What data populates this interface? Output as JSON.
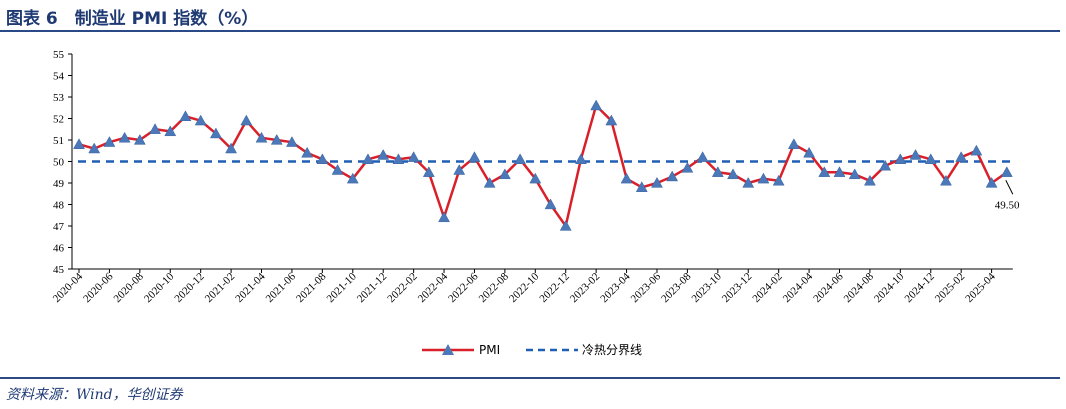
{
  "header": {
    "title": "图表 6　制造业 PMI 指数（%）"
  },
  "source": "资料来源：Wind，华创证券",
  "chart_data": {
    "type": "line",
    "title": "图表 6　制造业 PMI 指数（%）",
    "ylim": [
      45,
      55
    ],
    "yticks": [
      45,
      46,
      47,
      48,
      49,
      50,
      51,
      52,
      53,
      54,
      55
    ],
    "grid": false,
    "legend": "bottom",
    "x": [
      "2020-04",
      "2020-05",
      "2020-06",
      "2020-07",
      "2020-08",
      "2020-09",
      "2020-10",
      "2020-11",
      "2020-12",
      "2021-01",
      "2021-02",
      "2021-03",
      "2021-04",
      "2021-05",
      "2021-06",
      "2021-07",
      "2021-08",
      "2021-09",
      "2021-10",
      "2021-11",
      "2021-12",
      "2022-01",
      "2022-02",
      "2022-03",
      "2022-04",
      "2022-05",
      "2022-06",
      "2022-07",
      "2022-08",
      "2022-09",
      "2022-10",
      "2022-11",
      "2022-12",
      "2023-01",
      "2023-02",
      "2023-03",
      "2023-04",
      "2023-05",
      "2023-06",
      "2023-07",
      "2023-08",
      "2023-09",
      "2023-10",
      "2023-11",
      "2023-12",
      "2024-01",
      "2024-02",
      "2024-03",
      "2024-04",
      "2024-05",
      "2024-06",
      "2024-07",
      "2024-08",
      "2024-09",
      "2024-10",
      "2024-11",
      "2024-12",
      "2025-01",
      "2025-02",
      "2025-03",
      "2025-04",
      "2025-05"
    ],
    "xticklabels": [
      "2020-04",
      "2020-06",
      "2020-08",
      "2020-10",
      "2020-12",
      "2021-02",
      "2021-04",
      "2021-06",
      "2021-08",
      "2021-10",
      "2021-12",
      "2022-02",
      "2022-04",
      "2022-06",
      "2022-08",
      "2022-10",
      "2022-12",
      "2023-02",
      "2023-04",
      "2023-06",
      "2023-08",
      "2023-10",
      "2023-12",
      "2024-02",
      "2024-04",
      "2024-06",
      "2024-08",
      "2024-10",
      "2024-12",
      "2025-02",
      "2025-04"
    ],
    "series": [
      {
        "name": "PMI",
        "color": "#d9202a",
        "marker_color": "#4a78b8",
        "values": [
          50.8,
          50.6,
          50.9,
          51.1,
          51.0,
          51.5,
          51.4,
          52.1,
          51.9,
          51.3,
          50.6,
          51.9,
          51.1,
          51.0,
          50.9,
          50.4,
          50.1,
          49.6,
          49.2,
          50.1,
          50.3,
          50.1,
          50.2,
          49.5,
          47.4,
          49.6,
          50.2,
          49.0,
          49.4,
          50.1,
          49.2,
          48.0,
          47.0,
          50.1,
          52.6,
          51.9,
          49.2,
          48.8,
          49.0,
          49.3,
          49.7,
          50.2,
          49.5,
          49.4,
          49.0,
          49.2,
          49.1,
          50.8,
          50.4,
          49.5,
          49.5,
          49.4,
          49.1,
          49.8,
          50.1,
          50.3,
          50.1,
          49.1,
          50.2,
          50.5,
          49.0,
          49.5
        ]
      },
      {
        "name": "冷热分界线",
        "color": "#1f5fb4",
        "dashed": true,
        "value": 50
      }
    ],
    "annotations": [
      {
        "text": "49.50",
        "x": "2025-05",
        "y": 49.5
      }
    ]
  }
}
